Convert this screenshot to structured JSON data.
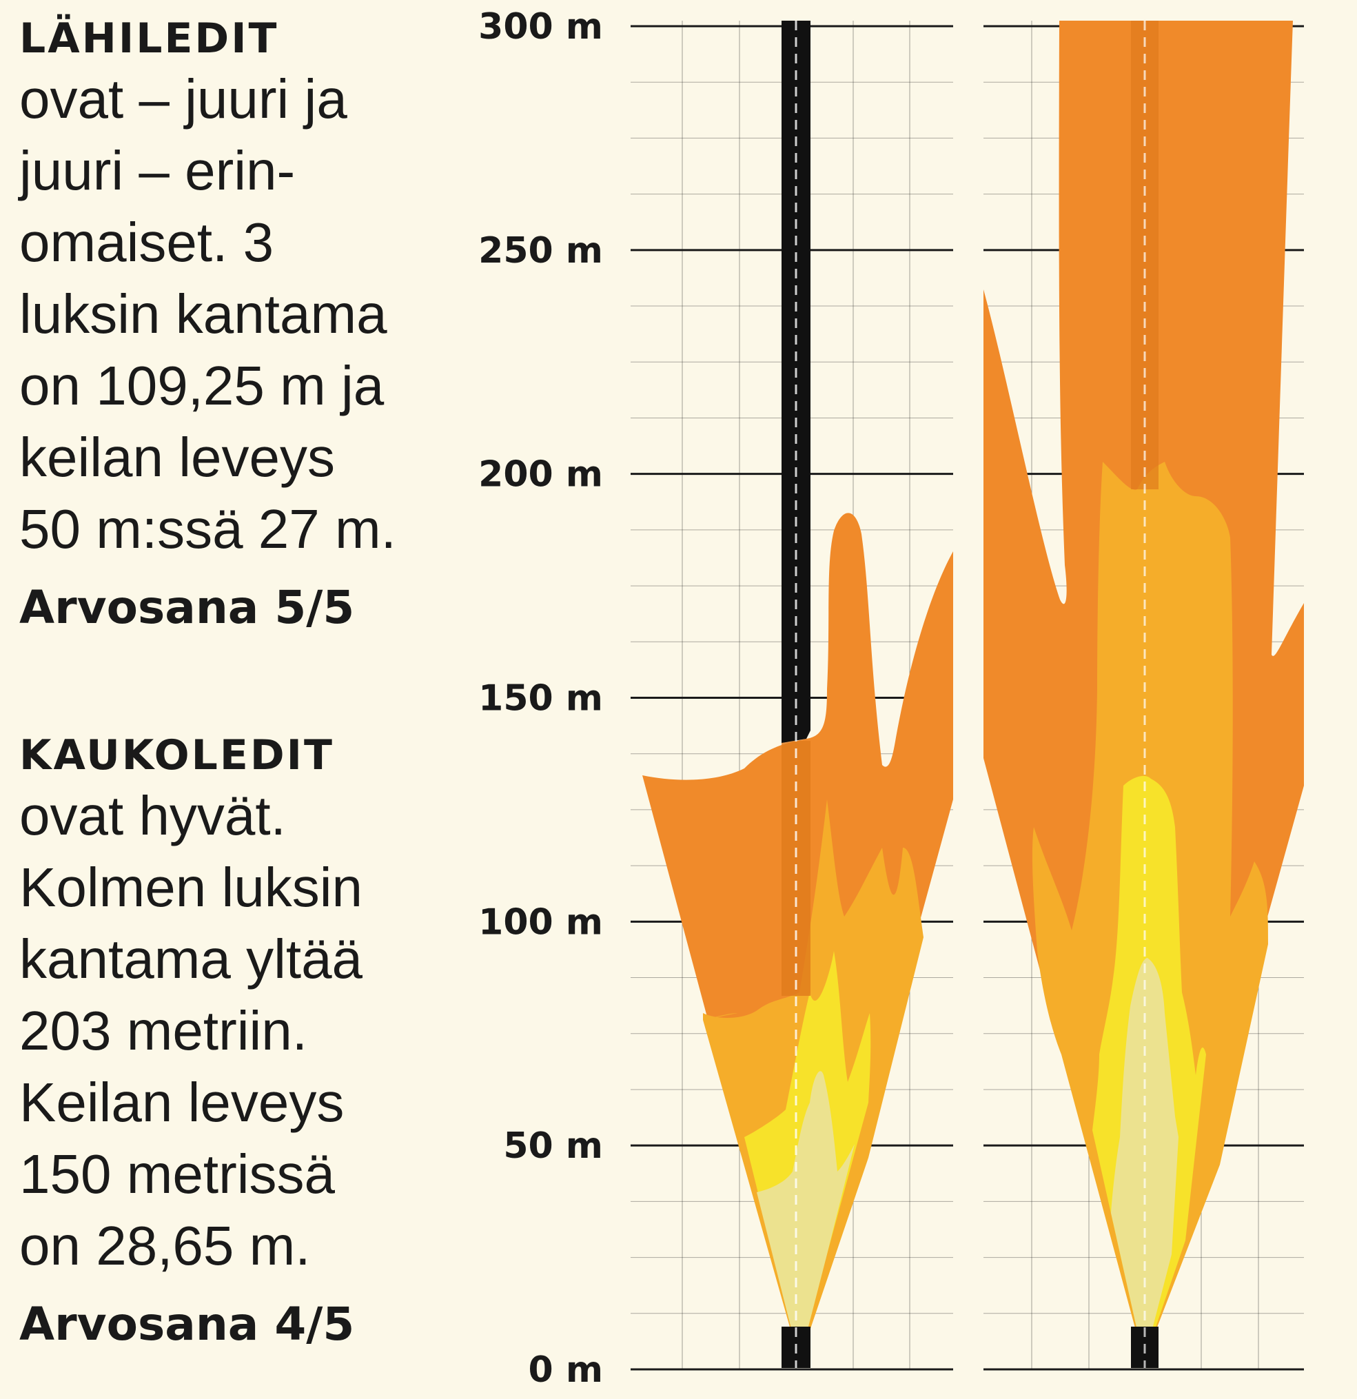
{
  "sections": [
    {
      "heading": "LÄHILEDIT",
      "body": "ovat – juuri ja\njuuri – erin-\nomaiset. 3\nluksin kantama\non 109,25 m ja\nkeilan leveys\n50 m:ssä 27 m.",
      "grade": "Arvosana 5/5"
    },
    {
      "heading": "KAUKOLEDIT",
      "body": "ovat hyvät.\nKolmen luksin\nkantama yltää\n203 metriin.\nKeilan leveys\n150 metrissä\non 28,65 m.",
      "grade": "Arvosana 4/5"
    }
  ],
  "chart_data": {
    "type": "beam-diagram",
    "y_axis": {
      "ticks": [
        "300 m",
        "250 m",
        "200 m",
        "150 m",
        "100 m",
        "50 m",
        "0 m"
      ],
      "range": [
        0,
        300
      ],
      "unit": "m"
    },
    "colors": {
      "background": "#fcf8e8",
      "grid": "#1a1a1a",
      "zone_outer": "#f08a2a",
      "zone_mid": "#f5ad2a",
      "zone_inner": "#f7e22a",
      "zone_core": "#ece28f",
      "center_band": "#e07a1c",
      "road": "#111111"
    },
    "panels": [
      {
        "name": "lähiledit"
      },
      {
        "name": "kaukoledit"
      }
    ]
  }
}
